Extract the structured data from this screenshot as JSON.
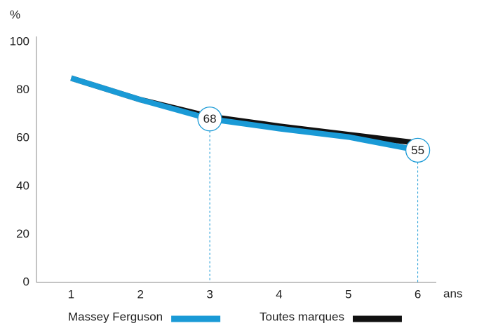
{
  "chart_data": {
    "type": "line",
    "y_label": "%",
    "x_label": "ans",
    "x": [
      1,
      2,
      3,
      4,
      5,
      6
    ],
    "series": [
      {
        "name": "Massey Ferguson",
        "color": "#1a9ad6",
        "values": [
          85,
          76,
          68,
          64,
          60.5,
          55
        ]
      },
      {
        "name": "Toutes marques",
        "color": "#111111",
        "values": [
          85,
          76,
          69,
          65,
          61.5,
          58
        ]
      }
    ],
    "xlim": [
      0.5,
      6.5
    ],
    "xticks": [
      1,
      2,
      3,
      4,
      5,
      6
    ],
    "ylim": [
      0,
      100
    ],
    "yticks": [
      0,
      20,
      40,
      60,
      80,
      100
    ],
    "annotations": [
      {
        "x": 3,
        "y": 68
      },
      {
        "x": 6,
        "y": 55
      }
    ],
    "annotation_color": "#1a9ad6"
  }
}
